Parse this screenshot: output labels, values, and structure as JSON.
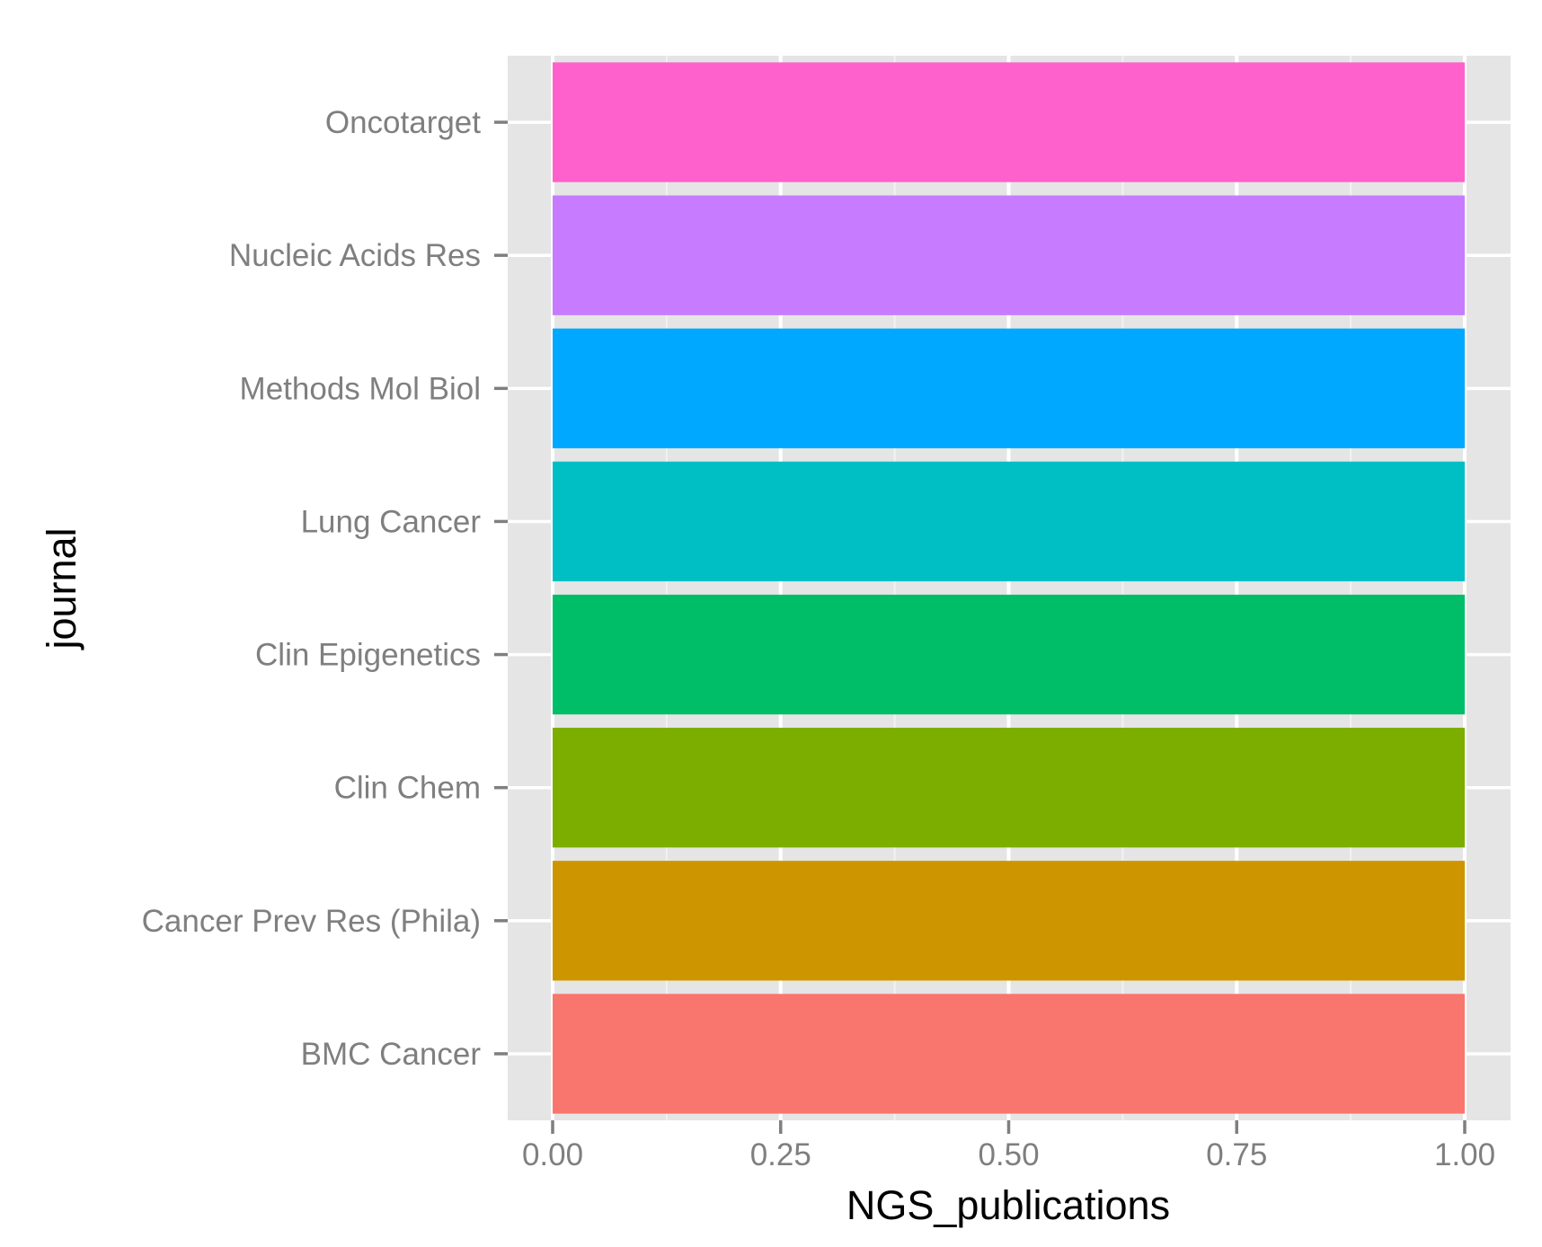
{
  "chart_data": {
    "type": "bar",
    "orientation": "horizontal",
    "categories": [
      "BMC Cancer",
      "Cancer Prev Res (Phila)",
      "Clin Chem",
      "Clin Epigenetics",
      "Lung Cancer",
      "Methods Mol Biol",
      "Nucleic Acids Res",
      "Oncotarget"
    ],
    "values": [
      1,
      1,
      1,
      1,
      1,
      1,
      1,
      1
    ],
    "colors": [
      "#F8766D",
      "#CD9600",
      "#7CAE00",
      "#00BE67",
      "#00BFC4",
      "#00A9FF",
      "#C77CFF",
      "#FF61CC"
    ],
    "xlabel": "NGS_publications",
    "ylabel": "journal",
    "xlim": [
      0,
      1
    ],
    "xticks": [
      0,
      0.25,
      0.5,
      0.75,
      1
    ],
    "xtick_labels": [
      "0.00",
      "0.25",
      "0.50",
      "0.75",
      "1.00"
    ],
    "grid": true,
    "panel_background": "#e5e5e5",
    "grid_color": "#ffffff"
  }
}
